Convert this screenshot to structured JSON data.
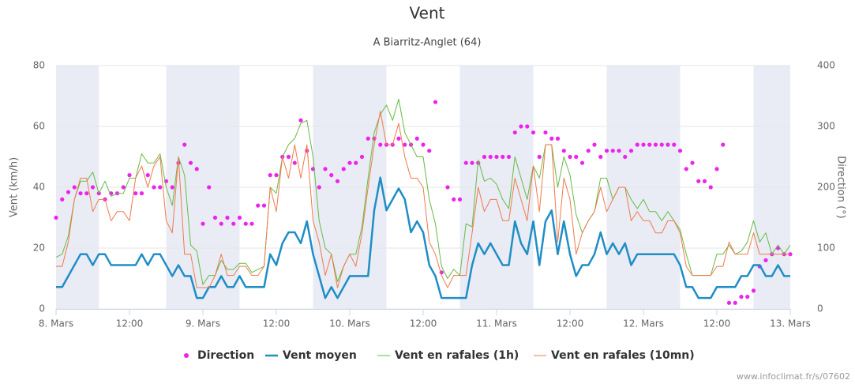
{
  "chart_data": {
    "type": "line",
    "title": "Vent",
    "subtitle": "A Biarritz-Anglet (64)",
    "y_label": "Vent (km/h)",
    "y2_label": "Direction (°)",
    "credits": "www.infoclimat.fr/s/07602",
    "legend": "bottom",
    "grid": true,
    "xlim": [
      0,
      120
    ],
    "xticks": [
      {
        "value": 0,
        "label": "8. Mars"
      },
      {
        "value": 12,
        "label": "12:00"
      },
      {
        "value": 24,
        "label": "9. Mars"
      },
      {
        "value": 36,
        "label": "12:00"
      },
      {
        "value": 48,
        "label": "10. Mars"
      },
      {
        "value": 60,
        "label": "12:00"
      },
      {
        "value": 72,
        "label": "11. Mars"
      },
      {
        "value": 84,
        "label": "12:00"
      },
      {
        "value": 96,
        "label": "12. Mars"
      },
      {
        "value": 108,
        "label": "12:00"
      },
      {
        "value": 120,
        "label": "13. Mars"
      }
    ],
    "ylim": [
      0,
      80
    ],
    "yticks": [
      0,
      20,
      40,
      60,
      80
    ],
    "y2lim": [
      0,
      400
    ],
    "y2ticks": [
      0,
      100,
      200,
      300,
      400
    ],
    "plot_bands": [
      [
        0,
        7
      ],
      [
        18,
        30
      ],
      [
        42,
        54
      ],
      [
        66,
        78
      ],
      [
        90,
        102
      ],
      [
        114,
        120
      ]
    ],
    "x": [
      0,
      1,
      2,
      3,
      4,
      5,
      6,
      7,
      8,
      9,
      10,
      11,
      12,
      13,
      14,
      15,
      16,
      17,
      18,
      19,
      20,
      21,
      22,
      23,
      24,
      25,
      26,
      27,
      28,
      29,
      30,
      31,
      32,
      33,
      34,
      35,
      36,
      37,
      38,
      39,
      40,
      41,
      42,
      43,
      44,
      45,
      46,
      47,
      48,
      49,
      50,
      51,
      52,
      53,
      54,
      55,
      56,
      57,
      58,
      59,
      60,
      61,
      62,
      63,
      64,
      65,
      66,
      67,
      68,
      69,
      70,
      71,
      72,
      73,
      74,
      75,
      76,
      77,
      78,
      79,
      80,
      81,
      82,
      83,
      84,
      85,
      86,
      87,
      88,
      89,
      90,
      91,
      92,
      93,
      94,
      95,
      96,
      97,
      98,
      99,
      100,
      101,
      102,
      103,
      104,
      105,
      106,
      107,
      108,
      109,
      110,
      111,
      112,
      113,
      114,
      115,
      116,
      117,
      118,
      119,
      120
    ],
    "series": [
      {
        "name": "Direction",
        "type": "scatter",
        "axis": "y2",
        "color": "#ee22ee",
        "values": [
          150,
          180,
          192,
          200,
          190,
          190,
          200,
          190,
          180,
          190,
          190,
          200,
          220,
          190,
          190,
          220,
          200,
          200,
          210,
          200,
          240,
          270,
          240,
          230,
          140,
          200,
          150,
          140,
          150,
          140,
          150,
          140,
          140,
          170,
          170,
          220,
          220,
          250,
          250,
          240,
          310,
          260,
          230,
          200,
          230,
          220,
          210,
          230,
          240,
          240,
          250,
          280,
          280,
          270,
          270,
          270,
          280,
          270,
          270,
          280,
          270,
          260,
          340,
          60,
          200,
          180,
          180,
          240,
          240,
          240,
          250,
          250,
          250,
          250,
          250,
          290,
          300,
          300,
          290,
          250,
          290,
          280,
          280,
          260,
          250,
          250,
          240,
          260,
          270,
          250,
          260,
          260,
          260,
          250,
          260,
          270,
          270,
          270,
          270,
          270,
          270,
          270,
          260,
          230,
          240,
          210,
          210,
          200,
          230,
          270,
          10,
          10,
          20,
          20,
          30,
          70,
          80,
          90,
          100,
          90,
          90
        ]
      },
      {
        "name": "Vent moyen",
        "type": "line",
        "color": "#1f8dc6",
        "width": 2.5,
        "values": [
          7.2,
          7.2,
          10.8,
          14.4,
          18,
          18,
          14.4,
          18,
          18,
          14.4,
          14.4,
          14.4,
          14.4,
          14.4,
          18,
          14.4,
          18,
          18,
          14.4,
          10.8,
          14.4,
          10.8,
          10.8,
          3.6,
          3.6,
          7.2,
          7.2,
          10.8,
          7.2,
          7.2,
          10.8,
          7.2,
          7.2,
          7.2,
          7.2,
          18,
          14.4,
          21.6,
          25.2,
          25.2,
          21.6,
          28.8,
          18,
          10.8,
          3.6,
          7.2,
          3.6,
          7.2,
          10.8,
          10.8,
          10.8,
          10.8,
          32.4,
          43.2,
          32.4,
          36,
          39.6,
          36,
          25.2,
          28.8,
          25.2,
          14.4,
          10.8,
          3.6,
          3.6,
          3.6,
          3.6,
          3.6,
          14.4,
          21.6,
          18,
          21.6,
          18,
          14.4,
          14.4,
          28.8,
          21.6,
          18,
          28.8,
          14.4,
          28.8,
          32.4,
          18,
          28.8,
          18,
          10.8,
          14.4,
          14.4,
          18,
          25.2,
          18,
          21.6,
          18,
          21.6,
          14.4,
          18,
          18,
          18,
          18,
          18,
          18,
          18,
          14.4,
          7.2,
          7.2,
          3.6,
          3.6,
          3.6,
          7.2,
          7.2,
          7.2,
          7.2,
          10.8,
          10.8,
          14.4,
          14.4,
          10.8,
          10.8,
          14.4,
          10.8,
          10.8
        ]
      },
      {
        "name": "Vent en rafales (1h)",
        "type": "line",
        "color": "#66bb44",
        "width": 1,
        "values": [
          17,
          18,
          24,
          36,
          42,
          42,
          45,
          38,
          42,
          37,
          38,
          38,
          43,
          43,
          51,
          48,
          48,
          51,
          40,
          34,
          50,
          44,
          21,
          19,
          8,
          11,
          11,
          16,
          13,
          13,
          15,
          15,
          12,
          13,
          14,
          40,
          38,
          50,
          54,
          56,
          61,
          62,
          50,
          29,
          20,
          18,
          9,
          14,
          18,
          18,
          27,
          43,
          58,
          64,
          67,
          62,
          69,
          58,
          54,
          50,
          50,
          36,
          28,
          14,
          10,
          13,
          11,
          28,
          27,
          49,
          42,
          43,
          41,
          36,
          33,
          50,
          43,
          36,
          47,
          43,
          54,
          54,
          40,
          50,
          44,
          31,
          25,
          29,
          32,
          43,
          43,
          36,
          40,
          40,
          36,
          33,
          36,
          32,
          32,
          29,
          32,
          29,
          26,
          18,
          11,
          11,
          11,
          11,
          18,
          18,
          21,
          18,
          19,
          22,
          29,
          22,
          25,
          18,
          21,
          18,
          21
        ]
      },
      {
        "name": "Vent en rafales (10mn)",
        "type": "line",
        "color": "#f07a4a",
        "width": 1,
        "values": [
          14,
          14,
          22,
          36,
          43,
          43,
          32,
          36,
          36,
          29,
          32,
          32,
          29,
          43,
          47,
          40,
          47,
          50,
          29,
          25,
          50,
          18,
          18,
          7,
          7,
          7,
          11,
          18,
          11,
          11,
          14,
          14,
          11,
          11,
          14,
          40,
          32,
          50,
          43,
          54,
          43,
          54,
          29,
          22,
          11,
          18,
          7,
          14,
          18,
          14,
          25,
          40,
          54,
          65,
          54,
          54,
          61,
          50,
          43,
          43,
          40,
          22,
          18,
          11,
          7,
          11,
          11,
          11,
          25,
          40,
          32,
          36,
          36,
          29,
          29,
          43,
          36,
          29,
          47,
          32,
          54,
          54,
          22,
          43,
          36,
          18,
          25,
          29,
          32,
          40,
          32,
          36,
          40,
          40,
          29,
          32,
          29,
          29,
          25,
          25,
          29,
          29,
          25,
          14,
          11,
          11,
          11,
          11,
          14,
          14,
          22,
          18,
          18,
          18,
          25,
          18,
          18,
          18,
          18,
          18,
          18
        ]
      }
    ]
  }
}
